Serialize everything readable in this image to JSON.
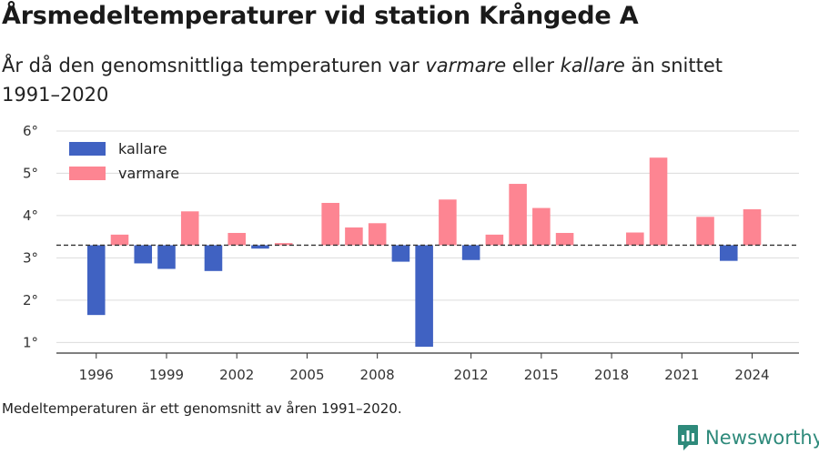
{
  "chart_data": {
    "type": "bar",
    "title": "Årsmedeltemperaturer vid station Krångede A",
    "subtitle": {
      "prefix": "År då den genomsnittliga temperaturen var ",
      "word_warm": "varmare",
      "middle": " eller ",
      "word_cold": "kallare",
      "suffix": " än snittet 1991–2020"
    },
    "baseline": 3.3,
    "x": [
      1996,
      1997,
      1998,
      1999,
      2000,
      2001,
      2002,
      2003,
      2004,
      2005,
      2006,
      2007,
      2008,
      2009,
      2010,
      2011,
      2012,
      2013,
      2014,
      2015,
      2016,
      2017,
      2018,
      2019,
      2020,
      2021,
      2022,
      2023,
      2024
    ],
    "values": [
      1.65,
      3.55,
      2.87,
      2.74,
      4.1,
      2.69,
      3.59,
      3.22,
      3.35,
      3.3,
      4.3,
      3.72,
      3.82,
      2.91,
      0.9,
      4.38,
      2.95,
      3.55,
      4.75,
      4.18,
      3.59,
      3.3,
      3.3,
      3.6,
      5.37,
      3.3,
      3.97,
      2.93,
      4.15
    ],
    "xlim": [
      1994.3,
      2026
    ],
    "ylim": [
      0.75,
      6.3
    ],
    "x_ticks": [
      "1996",
      "1999",
      "2002",
      "2005",
      "2008",
      "2012",
      "2015",
      "2018",
      "2021",
      "2024"
    ],
    "y_ticks": [
      "1°",
      "2°",
      "3°",
      "4°",
      "5°",
      "6°"
    ],
    "legend": {
      "position": "top-left",
      "entries": [
        {
          "label": "kallare",
          "color": "#4062c2"
        },
        {
          "label": "varmare",
          "color": "#fd8592"
        }
      ]
    },
    "colors": {
      "cold": "#4062c2",
      "warm": "#fd8592",
      "grid": "#dcdcdc",
      "axis": "#333333",
      "baseline": "#333333"
    },
    "grid": true
  },
  "footnote": "Medeltemperaturen är ett genomsnitt av åren 1991–2020.",
  "brand": {
    "name": "Newsworthy",
    "icon": "newsworthy-logo-icon",
    "color": "#2e8a7b"
  }
}
